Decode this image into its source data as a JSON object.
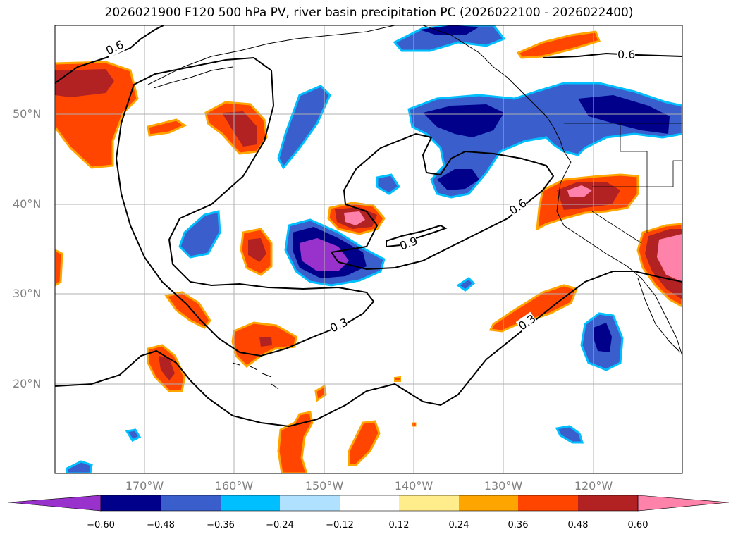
{
  "title": "2026021900 F120 500 hPa PV, river basin precipitation PC (2026022100 - 2026022400)",
  "lat_labels": [
    "50°N",
    "40°N",
    "30°N",
    "20°N"
  ],
  "lon_labels": [
    "170°W",
    "160°W",
    "150°W",
    "140°W",
    "130°W",
    "120°W"
  ],
  "contour_labels": [
    "0.6",
    "0.6",
    "0.6",
    "0.9",
    "0.3",
    "0.3"
  ],
  "colorbar": {
    "tick_labels": [
      "−0.60",
      "−0.48",
      "−0.36",
      "−0.24",
      "−0.12",
      "0.12",
      "0.24",
      "0.36",
      "0.48",
      "0.60"
    ],
    "colors": [
      "#9932cc",
      "#00008b",
      "#3a5fcd",
      "#00bfff",
      "#b0e2ff",
      "#ffffff",
      "#ffec8b",
      "#ffa500",
      "#ff4500",
      "#b22222",
      "#ff82ab"
    ]
  }
}
